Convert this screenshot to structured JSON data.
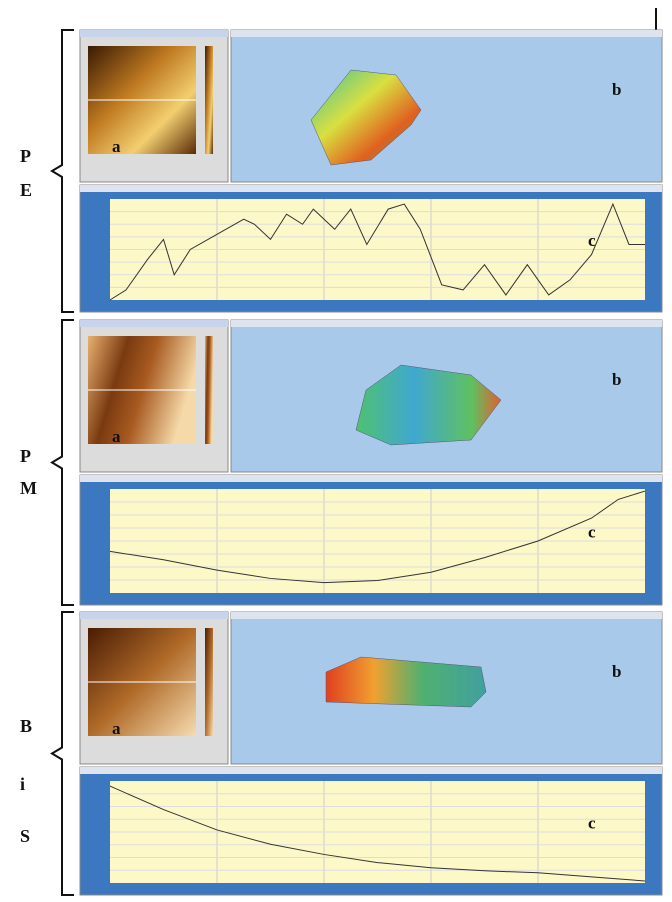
{
  "groups": [
    {
      "label_lines": [
        "P",
        "E"
      ],
      "panels": [
        "a",
        "b",
        "c"
      ]
    },
    {
      "label_lines": [
        "P",
        "M"
      ],
      "panels": [
        "a",
        "b",
        "c"
      ]
    },
    {
      "label_lines": [
        "B",
        "i",
        "S"
      ],
      "panels": [
        "a",
        "b",
        "c"
      ]
    }
  ]
}
